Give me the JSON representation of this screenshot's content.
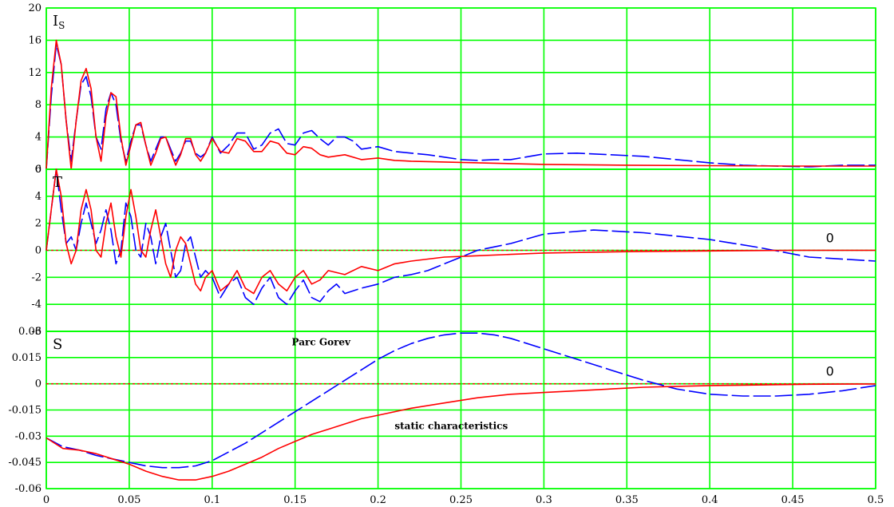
{
  "chart_data": [
    {
      "type": "line",
      "panel": "Is",
      "title": "I",
      "title_sub": "S",
      "xlim": [
        0,
        0.5
      ],
      "ylim": [
        0,
        20
      ],
      "yticks": [
        0,
        4,
        8,
        12,
        16,
        20
      ],
      "ytick_labels": [
        "0",
        "4",
        "8",
        "12",
        "16",
        "20"
      ],
      "grid": true,
      "series": [
        {
          "color": "#0000ff",
          "style": "dashed",
          "x": [
            0,
            0.003,
            0.006,
            0.009,
            0.012,
            0.015,
            0.018,
            0.021,
            0.024,
            0.027,
            0.03,
            0.033,
            0.036,
            0.039,
            0.042,
            0.045,
            0.048,
            0.051,
            0.054,
            0.057,
            0.06,
            0.063,
            0.066,
            0.069,
            0.072,
            0.075,
            0.078,
            0.081,
            0.084,
            0.087,
            0.09,
            0.093,
            0.096,
            0.1,
            0.105,
            0.11,
            0.115,
            0.12,
            0.125,
            0.13,
            0.135,
            0.14,
            0.145,
            0.15,
            0.155,
            0.16,
            0.165,
            0.17,
            0.175,
            0.18,
            0.185,
            0.19,
            0.2,
            0.21,
            0.22,
            0.23,
            0.24,
            0.25,
            0.26,
            0.27,
            0.28,
            0.3,
            0.32,
            0.34,
            0.36,
            0.38,
            0.4,
            0.42,
            0.44,
            0.46,
            0.48,
            0.5
          ],
          "y": [
            0,
            9,
            15.5,
            13,
            6,
            1,
            6,
            10.5,
            11.5,
            9,
            4,
            2.5,
            7.5,
            9.5,
            8,
            3.5,
            1,
            3.5,
            5.5,
            5.5,
            3,
            1,
            2.5,
            4,
            4,
            2.5,
            1,
            2,
            3.5,
            3.5,
            2,
            1.5,
            2,
            4,
            2,
            3,
            4.5,
            4.5,
            2.5,
            3,
            4.5,
            5,
            3.2,
            3,
            4.5,
            4.8,
            3.8,
            3,
            4,
            4,
            3.5,
            2.5,
            2.8,
            2.2,
            2,
            1.8,
            1.5,
            1.2,
            1.1,
            1.2,
            1.2,
            1.9,
            2.0,
            1.8,
            1.6,
            1.2,
            0.8,
            0.5,
            0.4,
            0.3,
            0.5,
            0.5
          ]
        },
        {
          "color": "#ff0000",
          "style": "solid",
          "x": [
            0,
            0.003,
            0.006,
            0.009,
            0.012,
            0.015,
            0.018,
            0.021,
            0.024,
            0.027,
            0.03,
            0.033,
            0.036,
            0.039,
            0.042,
            0.045,
            0.048,
            0.051,
            0.054,
            0.057,
            0.06,
            0.063,
            0.066,
            0.069,
            0.072,
            0.075,
            0.078,
            0.081,
            0.084,
            0.087,
            0.09,
            0.093,
            0.096,
            0.1,
            0.105,
            0.11,
            0.115,
            0.12,
            0.125,
            0.13,
            0.135,
            0.14,
            0.145,
            0.15,
            0.155,
            0.16,
            0.165,
            0.17,
            0.18,
            0.19,
            0.2,
            0.21,
            0.22,
            0.24,
            0.26,
            0.28,
            0.3,
            0.35,
            0.4,
            0.45,
            0.5
          ],
          "y": [
            0,
            10,
            16,
            13,
            6,
            0,
            6,
            11,
            12.5,
            10,
            4,
            1,
            6.5,
            9.5,
            9,
            4,
            0.5,
            3,
            5.5,
            5.8,
            3,
            0.5,
            2,
            3.8,
            4,
            2.2,
            0.5,
            1.8,
            3.8,
            3.8,
            1.8,
            1,
            2,
            3.8,
            2.2,
            2,
            3.8,
            3.5,
            2.2,
            2.2,
            3.5,
            3.2,
            2,
            1.8,
            2.8,
            2.6,
            1.8,
            1.5,
            1.8,
            1.2,
            1.4,
            1.1,
            1.0,
            0.9,
            0.8,
            0.7,
            0.6,
            0.5,
            0.45,
            0.4,
            0.4
          ]
        }
      ]
    },
    {
      "type": "line",
      "panel": "T",
      "title": "T",
      "xlim": [
        0,
        0.5
      ],
      "ylim": [
        -6,
        6
      ],
      "yticks": [
        -6,
        -4,
        -2,
        0,
        2,
        4,
        6
      ],
      "ytick_labels": [
        "-6",
        "-4",
        "-2",
        "0",
        "2",
        "4",
        "6"
      ],
      "grid": true,
      "annotations": [
        {
          "text": "0",
          "x": 0.47,
          "y": 0
        }
      ],
      "series": [
        {
          "color": "#0000ff",
          "style": "dashed",
          "x": [
            0,
            0.003,
            0.006,
            0.009,
            0.012,
            0.015,
            0.018,
            0.021,
            0.024,
            0.027,
            0.03,
            0.033,
            0.036,
            0.039,
            0.042,
            0.045,
            0.048,
            0.051,
            0.054,
            0.057,
            0.06,
            0.063,
            0.066,
            0.069,
            0.072,
            0.075,
            0.078,
            0.081,
            0.084,
            0.087,
            0.09,
            0.093,
            0.096,
            0.1,
            0.105,
            0.11,
            0.115,
            0.12,
            0.125,
            0.13,
            0.135,
            0.14,
            0.145,
            0.15,
            0.155,
            0.16,
            0.165,
            0.17,
            0.175,
            0.18,
            0.19,
            0.2,
            0.21,
            0.22,
            0.23,
            0.24,
            0.25,
            0.26,
            0.28,
            0.3,
            0.33,
            0.36,
            0.4,
            0.43,
            0.46,
            0.5
          ],
          "y": [
            0,
            3,
            6,
            3,
            0.5,
            1,
            0,
            2,
            3.5,
            2,
            0.5,
            1.5,
            3,
            1.5,
            -1,
            0,
            3.5,
            2.5,
            0,
            -0.5,
            2,
            1,
            -1,
            1,
            2,
            0,
            -2,
            -1.5,
            0.5,
            1,
            -0.5,
            -2,
            -1.5,
            -2,
            -3.5,
            -2.5,
            -2,
            -3.5,
            -4,
            -2.8,
            -2,
            -3.5,
            -4,
            -3,
            -2.2,
            -3.5,
            -3.8,
            -3,
            -2.5,
            -3.2,
            -2.8,
            -2.5,
            -2,
            -1.8,
            -1.5,
            -1,
            -0.5,
            0,
            0.5,
            1.2,
            1.5,
            1.3,
            0.8,
            0.2,
            -0.5,
            -0.8
          ]
        },
        {
          "color": "#ff0000",
          "style": "solid",
          "x": [
            0,
            0.003,
            0.006,
            0.009,
            0.012,
            0.015,
            0.018,
            0.021,
            0.024,
            0.027,
            0.03,
            0.033,
            0.036,
            0.039,
            0.042,
            0.045,
            0.048,
            0.051,
            0.054,
            0.057,
            0.06,
            0.063,
            0.066,
            0.069,
            0.072,
            0.075,
            0.078,
            0.081,
            0.084,
            0.087,
            0.09,
            0.093,
            0.096,
            0.1,
            0.105,
            0.11,
            0.115,
            0.12,
            0.125,
            0.13,
            0.135,
            0.14,
            0.145,
            0.15,
            0.155,
            0.16,
            0.165,
            0.17,
            0.18,
            0.19,
            0.2,
            0.21,
            0.22,
            0.24,
            0.26,
            0.28,
            0.3,
            0.35,
            0.4,
            0.45,
            0.5
          ],
          "y": [
            0,
            3,
            6,
            4,
            0.5,
            -1,
            0,
            3,
            4.5,
            3,
            0,
            -0.5,
            2,
            3.5,
            1,
            -0.5,
            2.5,
            4.5,
            2.5,
            0,
            -0.5,
            1.5,
            3,
            1,
            -1,
            -2,
            0,
            1,
            0.5,
            -1,
            -2.5,
            -3,
            -2,
            -1.5,
            -3,
            -2.5,
            -1.5,
            -2.8,
            -3.2,
            -2,
            -1.5,
            -2.5,
            -3,
            -2,
            -1.5,
            -2.5,
            -2.2,
            -1.5,
            -1.8,
            -1.2,
            -1.5,
            -1,
            -0.8,
            -0.5,
            -0.4,
            -0.3,
            -0.2,
            -0.1,
            -0.05,
            0,
            0
          ]
        }
      ]
    },
    {
      "type": "line",
      "panel": "S",
      "title": "S",
      "xlabel": "",
      "xlim": [
        0,
        0.5
      ],
      "ylim": [
        -0.06,
        0.03
      ],
      "xticks": [
        0,
        0.05,
        0.1,
        0.15,
        0.2,
        0.25,
        0.3,
        0.35,
        0.4,
        0.45,
        0.5
      ],
      "xtick_labels": [
        "0",
        "0.05",
        "0.1",
        "0.15",
        "0.2",
        "0.25",
        "0.3",
        "0.35",
        "0.4",
        "0.45",
        "0.5"
      ],
      "yticks": [
        0.03,
        0.015,
        0,
        -0.015,
        -0.03,
        -0.045,
        -0.06
      ],
      "ytick_labels": [
        "0.03",
        "0.015",
        "0",
        "-0.015",
        "-0.03",
        "-0.045",
        "-0.06"
      ],
      "grid": true,
      "annotations": [
        {
          "text": "Parc Gorev",
          "x": 0.148,
          "y": 0.022
        },
        {
          "text": "static characteristics",
          "x": 0.21,
          "y": -0.026
        },
        {
          "text": "0",
          "x": 0.47,
          "y": 0
        }
      ],
      "series": [
        {
          "name": "Parc Gorev",
          "color": "#0000ff",
          "style": "dashed",
          "x": [
            0,
            0.01,
            0.02,
            0.03,
            0.04,
            0.05,
            0.06,
            0.07,
            0.08,
            0.09,
            0.1,
            0.11,
            0.12,
            0.13,
            0.14,
            0.15,
            0.16,
            0.17,
            0.18,
            0.19,
            0.2,
            0.21,
            0.22,
            0.23,
            0.24,
            0.25,
            0.26,
            0.27,
            0.28,
            0.29,
            0.3,
            0.32,
            0.34,
            0.36,
            0.38,
            0.4,
            0.42,
            0.44,
            0.46,
            0.48,
            0.5
          ],
          "y": [
            -0.031,
            -0.036,
            -0.038,
            -0.041,
            -0.043,
            -0.045,
            -0.047,
            -0.048,
            -0.048,
            -0.047,
            -0.044,
            -0.039,
            -0.034,
            -0.028,
            -0.022,
            -0.016,
            -0.01,
            -0.004,
            0.002,
            0.008,
            0.014,
            0.019,
            0.023,
            0.026,
            0.028,
            0.029,
            0.029,
            0.028,
            0.026,
            0.023,
            0.02,
            0.014,
            0.008,
            0.002,
            -0.003,
            -0.006,
            -0.007,
            -0.007,
            -0.006,
            -0.004,
            -0.001
          ]
        },
        {
          "name": "static characteristics",
          "color": "#ff0000",
          "style": "solid",
          "x": [
            0,
            0.01,
            0.02,
            0.03,
            0.04,
            0.05,
            0.06,
            0.07,
            0.08,
            0.09,
            0.1,
            0.11,
            0.12,
            0.13,
            0.14,
            0.15,
            0.16,
            0.17,
            0.18,
            0.19,
            0.2,
            0.22,
            0.24,
            0.26,
            0.28,
            0.3,
            0.32,
            0.34,
            0.36,
            0.38,
            0.4,
            0.42,
            0.44,
            0.46,
            0.48,
            0.5
          ],
          "y": [
            -0.031,
            -0.037,
            -0.038,
            -0.04,
            -0.043,
            -0.046,
            -0.05,
            -0.053,
            -0.055,
            -0.055,
            -0.053,
            -0.05,
            -0.046,
            -0.042,
            -0.037,
            -0.033,
            -0.029,
            -0.026,
            -0.023,
            -0.02,
            -0.018,
            -0.014,
            -0.011,
            -0.008,
            -0.006,
            -0.005,
            -0.004,
            -0.003,
            -0.002,
            -0.0015,
            -0.001,
            -0.0008,
            -0.0005,
            -0.0003,
            -0.0002,
            -0.0001
          ]
        }
      ]
    }
  ]
}
